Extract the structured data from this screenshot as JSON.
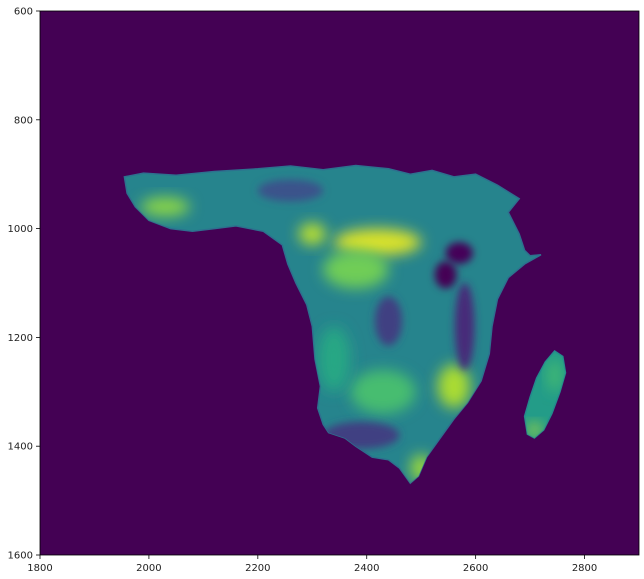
{
  "chart_data": {
    "type": "heatmap",
    "title": "",
    "xlabel": "",
    "ylabel": "",
    "xlim": [
      1800,
      2900
    ],
    "ylim": [
      1600,
      600
    ],
    "y_inverted": true,
    "grid": false,
    "colormap": "viridis",
    "x_ticks": [
      {
        "value": 1800,
        "label": "1800"
      },
      {
        "value": 2000,
        "label": "2000"
      },
      {
        "value": 2200,
        "label": "2200"
      },
      {
        "value": 2400,
        "label": "2400"
      },
      {
        "value": 2600,
        "label": "2600"
      },
      {
        "value": 2800,
        "label": "2800"
      }
    ],
    "y_ticks": [
      {
        "value": 600,
        "label": "600"
      },
      {
        "value": 800,
        "label": "800"
      },
      {
        "value": 1000,
        "label": "1000"
      },
      {
        "value": 1200,
        "label": "1200"
      },
      {
        "value": 1400,
        "label": "1400"
      },
      {
        "value": 1600,
        "label": "1600"
      }
    ],
    "background_color": "#440154",
    "regions": [
      {
        "name": "mainland",
        "mean_level": 0.45,
        "outline": [
          [
            1955,
            905
          ],
          [
            1990,
            898
          ],
          [
            2050,
            902
          ],
          [
            2120,
            895
          ],
          [
            2200,
            890
          ],
          [
            2260,
            885
          ],
          [
            2320,
            892
          ],
          [
            2380,
            884
          ],
          [
            2440,
            890
          ],
          [
            2480,
            900
          ],
          [
            2520,
            893
          ],
          [
            2560,
            905
          ],
          [
            2600,
            900
          ],
          [
            2640,
            920
          ],
          [
            2680,
            945
          ],
          [
            2660,
            970
          ],
          [
            2680,
            1010
          ],
          [
            2690,
            1040
          ],
          [
            2700,
            1050
          ],
          [
            2720,
            1048
          ],
          [
            2690,
            1065
          ],
          [
            2660,
            1090
          ],
          [
            2640,
            1130
          ],
          [
            2630,
            1180
          ],
          [
            2625,
            1230
          ],
          [
            2610,
            1280
          ],
          [
            2585,
            1320
          ],
          [
            2560,
            1350
          ],
          [
            2535,
            1385
          ],
          [
            2510,
            1420
          ],
          [
            2495,
            1455
          ],
          [
            2480,
            1468
          ],
          [
            2460,
            1440
          ],
          [
            2440,
            1425
          ],
          [
            2410,
            1420
          ],
          [
            2380,
            1400
          ],
          [
            2360,
            1385
          ],
          [
            2330,
            1375
          ],
          [
            2320,
            1360
          ],
          [
            2310,
            1330
          ],
          [
            2315,
            1290
          ],
          [
            2305,
            1240
          ],
          [
            2300,
            1180
          ],
          [
            2290,
            1140
          ],
          [
            2270,
            1100
          ],
          [
            2255,
            1065
          ],
          [
            2245,
            1030
          ],
          [
            2210,
            1005
          ],
          [
            2160,
            995
          ],
          [
            2120,
            1000
          ],
          [
            2080,
            1005
          ],
          [
            2040,
            1000
          ],
          [
            2000,
            985
          ],
          [
            1975,
            960
          ],
          [
            1960,
            935
          ]
        ]
      },
      {
        "name": "island",
        "mean_level": 0.55,
        "outline": [
          [
            2745,
            1225
          ],
          [
            2760,
            1235
          ],
          [
            2765,
            1265
          ],
          [
            2755,
            1300
          ],
          [
            2740,
            1340
          ],
          [
            2725,
            1370
          ],
          [
            2708,
            1385
          ],
          [
            2695,
            1378
          ],
          [
            2690,
            1345
          ],
          [
            2700,
            1310
          ],
          [
            2712,
            1275
          ],
          [
            2728,
            1245
          ]
        ]
      }
    ],
    "highlights": [
      {
        "name": "northwest-coast",
        "level": 0.82,
        "center": [
          2030,
          960
        ],
        "radius": [
          45,
          18
        ]
      },
      {
        "name": "central-band",
        "level": 0.95,
        "center": [
          2420,
          1025
        ],
        "radius": [
          80,
          25
        ]
      },
      {
        "name": "central-interior",
        "level": 0.78,
        "center": [
          2380,
          1075
        ],
        "radius": [
          60,
          35
        ]
      },
      {
        "name": "west-upper",
        "level": 0.9,
        "center": [
          2300,
          1010
        ],
        "radius": [
          25,
          20
        ]
      },
      {
        "name": "east-lower",
        "level": 0.88,
        "center": [
          2560,
          1290
        ],
        "radius": [
          30,
          40
        ]
      },
      {
        "name": "south-tip",
        "level": 0.85,
        "center": [
          2500,
          1440
        ],
        "radius": [
          20,
          25
        ]
      },
      {
        "name": "south-central",
        "level": 0.7,
        "center": [
          2430,
          1300
        ],
        "radius": [
          60,
          40
        ]
      },
      {
        "name": "west-coast",
        "level": 0.6,
        "center": [
          2340,
          1240
        ],
        "radius": [
          30,
          60
        ]
      },
      {
        "name": "island-south",
        "level": 0.9,
        "center": [
          2708,
          1370
        ],
        "radius": [
          12,
          12
        ]
      },
      {
        "name": "island-east",
        "level": 0.7,
        "center": [
          2745,
          1270
        ],
        "radius": [
          12,
          30
        ]
      }
    ],
    "low_patches": [
      {
        "name": "lake-east-1",
        "level": 0.02,
        "center": [
          2570,
          1045
        ],
        "radius": [
          25,
          20
        ]
      },
      {
        "name": "lake-east-2",
        "level": 0.0,
        "center": [
          2545,
          1085
        ],
        "radius": [
          20,
          25
        ]
      },
      {
        "name": "rift-east",
        "level": 0.15,
        "center": [
          2580,
          1180
        ],
        "radius": [
          18,
          80
        ]
      },
      {
        "name": "interior-dark",
        "level": 0.2,
        "center": [
          2440,
          1170
        ],
        "radius": [
          25,
          45
        ]
      },
      {
        "name": "south-dry",
        "level": 0.2,
        "center": [
          2390,
          1380
        ],
        "radius": [
          70,
          25
        ]
      },
      {
        "name": "north-coast-dark",
        "level": 0.25,
        "center": [
          2260,
          930
        ],
        "radius": [
          60,
          20
        ]
      }
    ]
  }
}
